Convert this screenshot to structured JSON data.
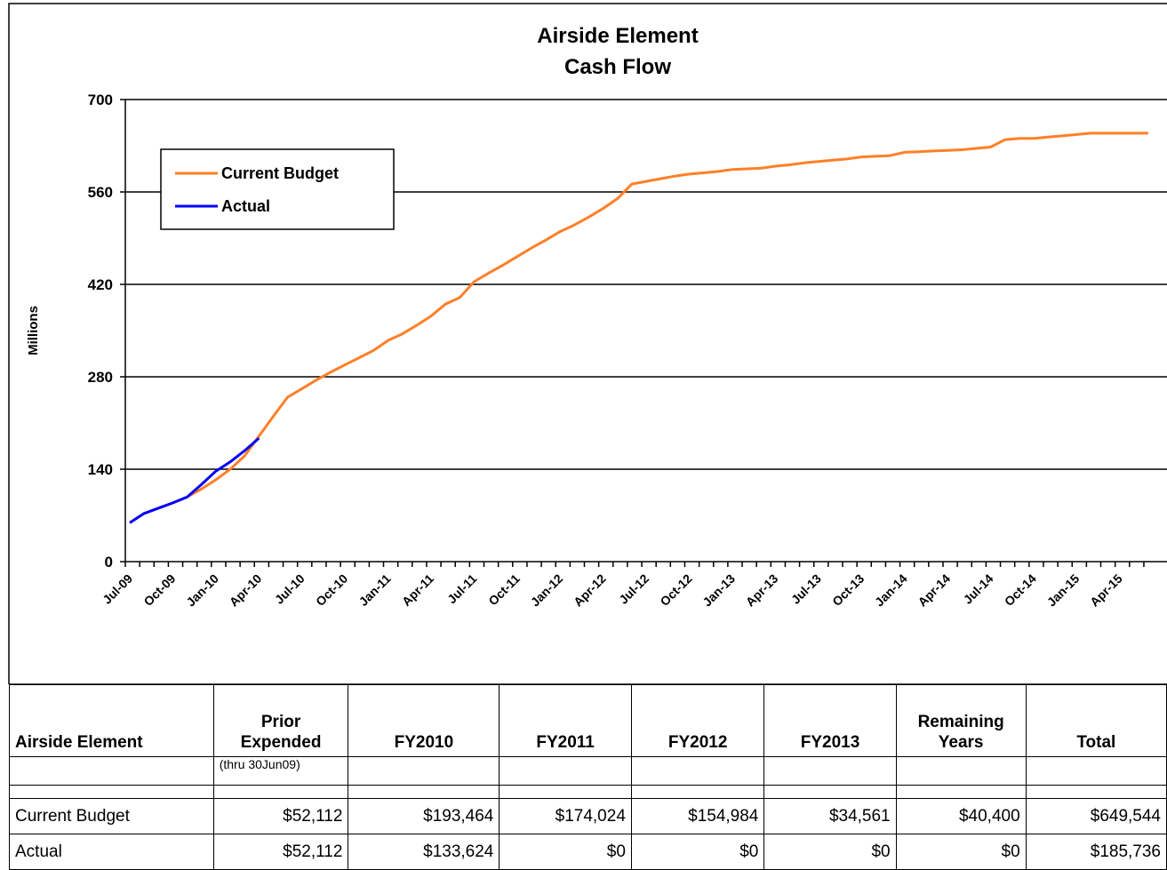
{
  "chart_data": {
    "type": "line",
    "title": [
      "Airside Element",
      "Cash Flow"
    ],
    "y_label": "Millions",
    "categories": [
      "Jul-09",
      null,
      null,
      "Oct-09",
      null,
      null,
      "Jan-10",
      null,
      null,
      "Apr-10",
      null,
      null,
      "Jul-10",
      null,
      null,
      "Oct-10",
      null,
      null,
      "Jan-11",
      null,
      null,
      "Apr-11",
      null,
      null,
      "Jul-11",
      null,
      null,
      "Oct-11",
      null,
      null,
      "Jan-12",
      null,
      null,
      "Apr-12",
      null,
      null,
      "Jul-12",
      null,
      null,
      "Oct-12",
      null,
      null,
      "Jan-13",
      null,
      null,
      "Apr-13",
      null,
      null,
      "Jul-13",
      null,
      null,
      "Oct-13",
      null,
      null,
      "Jan-14",
      null,
      null,
      "Apr-14",
      null,
      null,
      "Jul-14",
      null,
      null,
      "Oct-14",
      null,
      null,
      "Jan-15",
      null,
      null,
      "Apr-15",
      null,
      null
    ],
    "series": [
      {
        "name": "Current Budget",
        "color": "#ff7f27",
        "values": [
          59,
          73,
          81,
          89,
          98,
          110,
          124,
          140,
          160,
          190,
          220,
          249,
          262,
          275,
          287,
          298,
          309,
          320,
          335,
          345,
          358,
          372,
          390,
          400,
          424,
          437,
          449,
          462,
          475,
          487,
          500,
          510,
          522,
          535,
          550,
          572,
          576,
          580,
          584,
          587,
          589,
          591,
          594,
          595,
          596,
          599,
          601,
          604,
          606,
          608,
          610,
          613,
          614,
          615,
          620,
          621,
          622,
          623,
          624,
          626,
          628,
          639,
          641,
          641,
          643,
          645,
          647,
          649,
          649,
          649,
          649,
          649
        ]
      },
      {
        "name": "Actual",
        "color": "#0000ff",
        "values": [
          59,
          73,
          81,
          89,
          98,
          117,
          137,
          151,
          168,
          187,
          null,
          null,
          null,
          null,
          null,
          null,
          null,
          null,
          null,
          null,
          null,
          null,
          null,
          null,
          null,
          null,
          null,
          null,
          null,
          null,
          null,
          null,
          null,
          null,
          null,
          null,
          null,
          null,
          null,
          null,
          null,
          null,
          null,
          null,
          null,
          null,
          null,
          null,
          null,
          null,
          null,
          null,
          null,
          null,
          null,
          null,
          null,
          null,
          null,
          null,
          null,
          null,
          null,
          null,
          null,
          null,
          null,
          null,
          null,
          null,
          null,
          null
        ]
      }
    ],
    "ylim": [
      0,
      700
    ],
    "yticks": [
      0,
      140,
      280,
      420,
      560,
      700
    ],
    "grid": true,
    "legend": "upper left"
  },
  "table": {
    "header": [
      "Airside Element",
      "Prior\nExpended",
      "FY2010",
      "FY2011",
      "FY2012",
      "FY2013",
      "Remaining\nYears",
      "Total"
    ],
    "note": "(thru 30Jun09)",
    "rows": [
      [
        "Current Budget",
        "$52,112",
        "$193,464",
        "$174,024",
        "$154,984",
        "$34,561",
        "$40,400",
        "$649,544"
      ],
      [
        "Actual",
        "$52,112",
        "$133,624",
        "$0",
        "$0",
        "$0",
        "$0",
        "$185,736"
      ]
    ]
  }
}
